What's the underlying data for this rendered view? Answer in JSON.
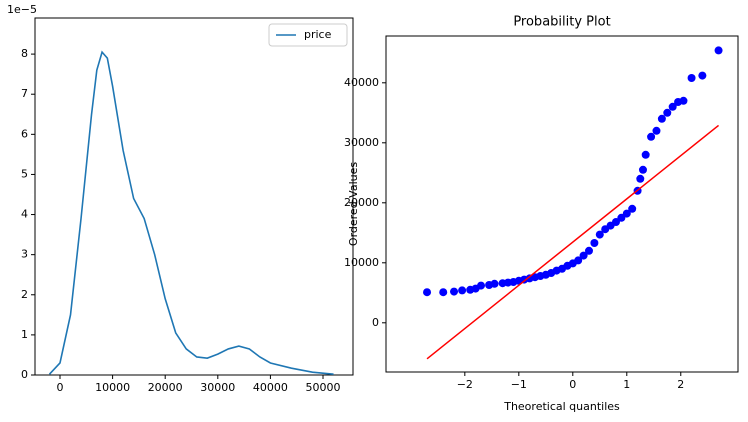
{
  "chart_data": [
    {
      "type": "line",
      "offset_text": "1e−5",
      "x": [
        -2000,
        0,
        2000,
        4000,
        6000,
        7000,
        8000,
        9000,
        10000,
        12000,
        14000,
        16000,
        18000,
        20000,
        22000,
        24000,
        26000,
        28000,
        30000,
        32000,
        34000,
        36000,
        38000,
        40000,
        44000,
        48000,
        52000
      ],
      "series": [
        {
          "name": "price",
          "color": "#1f77b4",
          "values": [
            0.02,
            0.3,
            1.5,
            3.9,
            6.5,
            7.6,
            8.05,
            7.9,
            7.2,
            5.6,
            4.4,
            3.9,
            3.0,
            1.9,
            1.05,
            0.65,
            0.45,
            0.42,
            0.52,
            0.65,
            0.72,
            0.65,
            0.45,
            0.3,
            0.17,
            0.07,
            0.02
          ]
        }
      ],
      "xlim": [
        -4750,
        55700
      ],
      "ylim": [
        0,
        8.9
      ],
      "xticks": [
        0,
        10000,
        20000,
        30000,
        40000,
        50000
      ],
      "yticks": [
        0,
        1,
        2,
        3,
        4,
        5,
        6,
        7,
        8
      ],
      "legend": "upper right"
    },
    {
      "type": "scatter",
      "title": "Probability Plot",
      "xlabel": "Theoretical quantiles",
      "ylabel": "Ordered Values",
      "color": "#0000ff",
      "x": [
        -2.7,
        -2.4,
        -2.2,
        -2.05,
        -1.9,
        -1.8,
        -1.7,
        -1.55,
        -1.45,
        -1.3,
        -1.2,
        -1.1,
        -1.0,
        -0.9,
        -0.8,
        -0.7,
        -0.6,
        -0.5,
        -0.4,
        -0.3,
        -0.2,
        -0.1,
        0.0,
        0.1,
        0.2,
        0.3,
        0.4,
        0.5,
        0.6,
        0.7,
        0.8,
        0.9,
        1.0,
        1.1,
        1.2,
        1.25,
        1.3,
        1.35,
        1.45,
        1.55,
        1.65,
        1.75,
        1.85,
        1.95,
        2.05,
        2.2,
        2.4,
        2.7
      ],
      "values": [
        5100,
        5100,
        5200,
        5400,
        5500,
        5700,
        6200,
        6300,
        6500,
        6600,
        6700,
        6800,
        7000,
        7200,
        7400,
        7600,
        7800,
        8000,
        8300,
        8700,
        9000,
        9500,
        9900,
        10400,
        11200,
        12000,
        13300,
        14700,
        15600,
        16200,
        16800,
        17500,
        18200,
        19000,
        22000,
        24000,
        25500,
        28000,
        31000,
        32000,
        34000,
        35000,
        36000,
        36800,
        37000,
        40800,
        41200,
        45400
      ],
      "fit_line": {
        "color": "#ff0000",
        "x": [
          -2.7,
          2.7
        ],
        "values": [
          -6000,
          32900
        ]
      },
      "xlim": [
        -3.46,
        3.06
      ],
      "ylim": [
        -8200,
        47800
      ],
      "xticks": [
        {
          "value": -2,
          "label": "−2"
        },
        {
          "value": -1,
          "label": "−1"
        },
        0,
        1,
        2
      ],
      "yticks": [
        0,
        10000,
        20000,
        30000,
        40000
      ]
    }
  ]
}
